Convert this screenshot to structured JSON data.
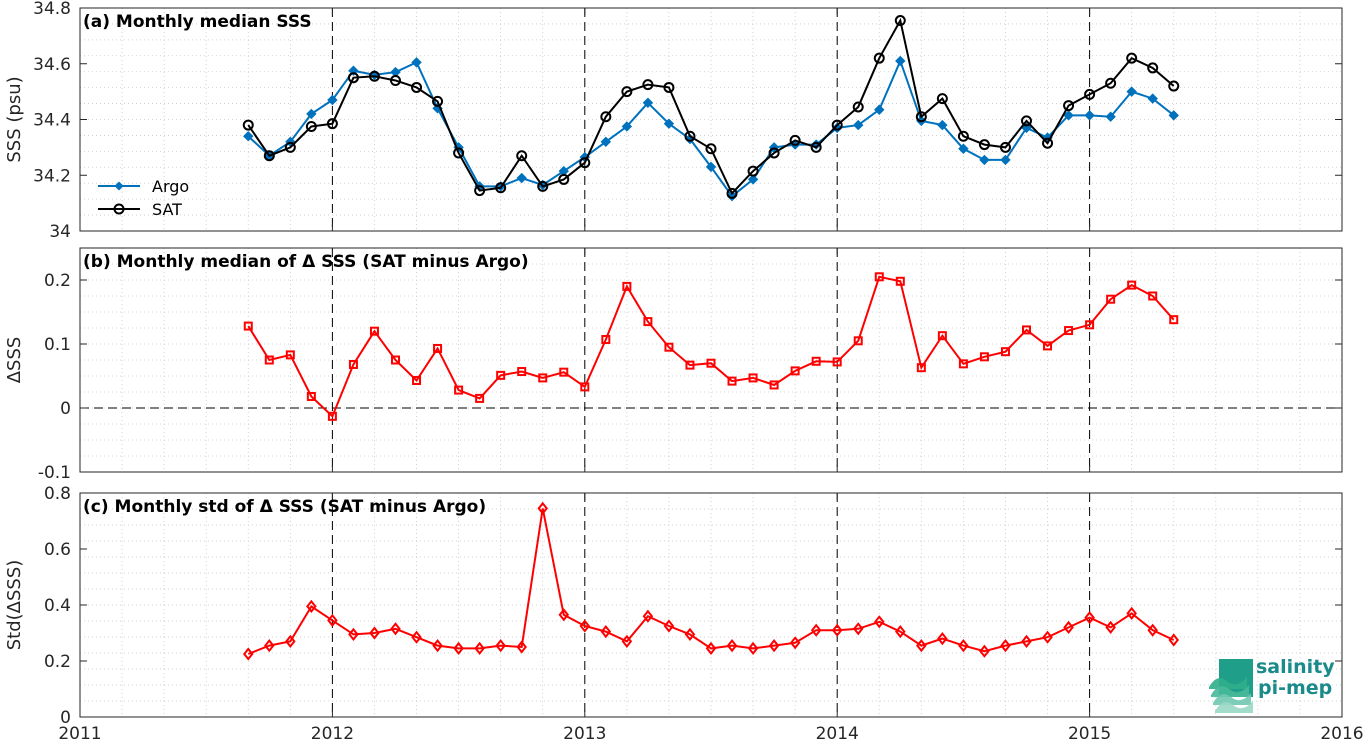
{
  "chart_data": [
    {
      "type": "line",
      "panel": "a",
      "title": "(a) Monthly median SSS",
      "xlabel": "",
      "ylabel": "SSS (psu)",
      "xlim": [
        2011,
        2016
      ],
      "ylim": [
        34,
        34.8
      ],
      "yticks": [
        34,
        34.2,
        34.4,
        34.6,
        34.8
      ],
      "ytick_labels": [
        "34",
        "34.2",
        "34.4",
        "34.6",
        "34.8"
      ],
      "grid": true,
      "legend": "lower-left",
      "series": [
        {
          "name": "Argo",
          "color": "#0072BD",
          "marker": "diamond",
          "values": [
            34.34,
            34.27,
            34.32,
            34.42,
            34.47,
            34.575,
            34.56,
            34.57,
            34.605,
            34.44,
            34.3,
            34.16,
            34.16,
            34.19,
            34.165,
            34.215,
            34.265,
            34.32,
            34.375,
            34.46,
            34.385,
            34.33,
            34.23,
            34.125,
            34.185,
            34.3,
            34.31,
            34.31,
            34.37,
            34.38,
            34.435,
            34.61,
            34.395,
            34.38,
            34.295,
            34.255,
            34.255,
            34.37,
            34.335,
            34.415,
            34.415,
            34.41,
            34.5,
            34.475,
            34.415
          ]
        },
        {
          "name": "SAT",
          "color": "#000000",
          "marker": "circle",
          "values": [
            34.38,
            34.27,
            34.3,
            34.375,
            34.385,
            34.55,
            34.555,
            34.54,
            34.515,
            34.465,
            34.28,
            34.145,
            34.155,
            34.27,
            34.16,
            34.185,
            34.245,
            34.41,
            34.5,
            34.525,
            34.515,
            34.34,
            34.295,
            34.135,
            34.215,
            34.28,
            34.325,
            34.3,
            34.38,
            34.445,
            34.62,
            34.755,
            34.41,
            34.475,
            34.34,
            34.31,
            34.3,
            34.395,
            34.315,
            34.45,
            34.49,
            34.53,
            34.62,
            34.585,
            34.52
          ]
        }
      ]
    },
    {
      "type": "line",
      "panel": "b",
      "title": "(b) Monthly median of Δ SSS (SAT minus Argo)",
      "xlabel": "",
      "ylabel": "ΔSSS",
      "xlim": [
        2011,
        2016
      ],
      "ylim": [
        -0.1,
        0.25
      ],
      "yticks": [
        -0.1,
        0,
        0.1,
        0.2
      ],
      "ytick_labels": [
        "-0.1",
        "0",
        "0.1",
        "0.2"
      ],
      "grid": true,
      "reference_line": 0,
      "series": [
        {
          "name": "",
          "color": "#FF0000",
          "marker": "square",
          "values": [
            0.128,
            0.075,
            0.083,
            0.018,
            -0.013,
            0.068,
            0.12,
            0.075,
            0.043,
            0.093,
            0.028,
            0.015,
            0.051,
            0.057,
            0.047,
            0.056,
            0.033,
            0.107,
            0.19,
            0.135,
            0.095,
            0.067,
            0.07,
            0.042,
            0.047,
            0.036,
            0.058,
            0.073,
            0.072,
            0.105,
            0.205,
            0.198,
            0.063,
            0.113,
            0.069,
            0.08,
            0.088,
            0.122,
            0.097,
            0.121,
            0.13,
            0.17,
            0.192,
            0.175,
            0.138
          ]
        }
      ]
    },
    {
      "type": "line",
      "panel": "c",
      "title": "(c) Monthly std of Δ SSS (SAT minus Argo)",
      "xlabel": "",
      "ylabel": "Std(ΔSSS)",
      "xlim": [
        2011,
        2016
      ],
      "ylim": [
        0,
        0.8
      ],
      "yticks": [
        0,
        0.2,
        0.4,
        0.6,
        0.8
      ],
      "ytick_labels": [
        "0",
        "0.2",
        "0.4",
        "0.6",
        "0.8"
      ],
      "xticks": [
        2011,
        2012,
        2013,
        2014,
        2015,
        2016
      ],
      "xtick_labels": [
        "2011",
        "2012",
        "2013",
        "2014",
        "2015",
        "2016"
      ],
      "grid": true,
      "series": [
        {
          "name": "",
          "color": "#FF0000",
          "marker": "diamond",
          "values": [
            0.225,
            0.255,
            0.27,
            0.395,
            0.345,
            0.295,
            0.3,
            0.315,
            0.285,
            0.255,
            0.245,
            0.245,
            0.255,
            0.25,
            0.745,
            0.365,
            0.325,
            0.305,
            0.27,
            0.36,
            0.325,
            0.295,
            0.245,
            0.255,
            0.245,
            0.255,
            0.265,
            0.31,
            0.31,
            0.315,
            0.34,
            0.305,
            0.255,
            0.28,
            0.255,
            0.235,
            0.255,
            0.27,
            0.285,
            0.32,
            0.355,
            0.32,
            0.37,
            0.31,
            0.275
          ]
        }
      ]
    }
  ],
  "time": {
    "start_year": 2011,
    "start_month": 9,
    "n_months": 45
  },
  "logo": {
    "line1": "salinity",
    "line2": "pi-mep"
  }
}
